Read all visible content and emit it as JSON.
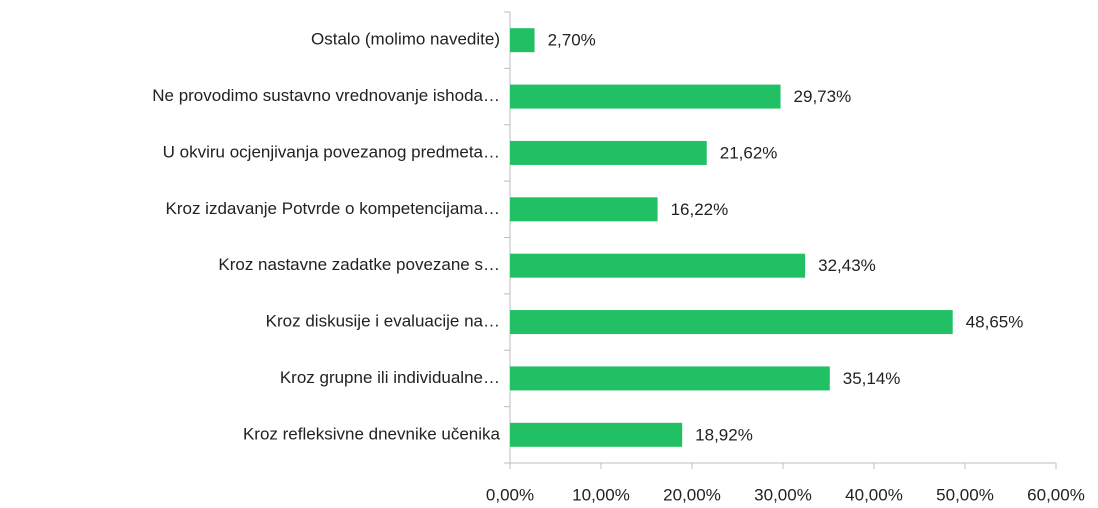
{
  "chart_data": {
    "type": "hbar",
    "categories": [
      "Ostalo (molimo navedite)",
      "Ne provodimo sustavno vrednovanje ishoda…",
      "U okviru ocjenjivanja povezanog predmeta…",
      "Kroz izdavanje Potvrde o kompetencijama…",
      "Kroz nastavne zadatke povezane s…",
      "Kroz diskusije i evaluacije na…",
      "Kroz grupne ili individualne…",
      "Kroz refleksivne dnevnike učenika"
    ],
    "values": [
      2.7,
      29.73,
      21.62,
      16.22,
      32.43,
      48.65,
      35.14,
      18.92
    ],
    "value_labels": [
      "2,70%",
      "29,73%",
      "21,62%",
      "16,22%",
      "32,43%",
      "48,65%",
      "35,14%",
      "18,92%"
    ],
    "color": "#21c065",
    "xlim": [
      0,
      60
    ],
    "xticks": [
      {
        "value": 0,
        "label": "0,00%"
      },
      {
        "value": 10,
        "label": "10,00%"
      },
      {
        "value": 20,
        "label": "20,00%"
      },
      {
        "value": 30,
        "label": "30,00%"
      },
      {
        "value": 40,
        "label": "40,00%"
      },
      {
        "value": 50,
        "label": "50,00%"
      },
      {
        "value": 60,
        "label": "60,00%"
      }
    ],
    "grid": false
  }
}
